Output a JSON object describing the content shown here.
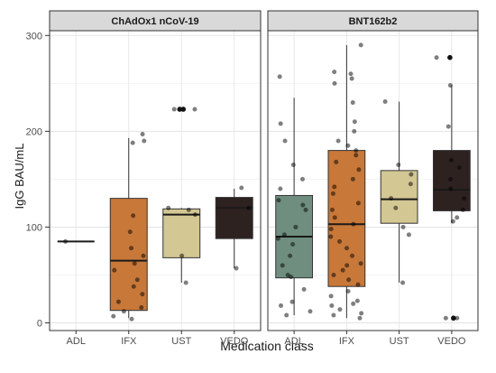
{
  "chart_data": {
    "type": "boxplot",
    "ylabel": "IgG BAU/mL",
    "xlabel": "Medication class",
    "categories": [
      "ADL",
      "IFX",
      "UST",
      "VEDO"
    ],
    "ylim": [
      -8,
      305
    ],
    "yticks": [
      0,
      100,
      200,
      300
    ],
    "grid": true,
    "colors": {
      "ADL": "#6f8e7f",
      "IFX": "#c87839",
      "UST": "#d3c793",
      "VEDO": "#2e2220"
    },
    "panels": [
      {
        "name": "ChAdOx1 nCoV-19",
        "boxes": [
          {
            "category": "ADL",
            "min": 85,
            "q1": 85,
            "median": 85,
            "q3": 85,
            "max": 85,
            "outliers": [],
            "points": [
              85
            ]
          },
          {
            "category": "IFX",
            "min": 5,
            "q1": 13,
            "median": 65,
            "q3": 130,
            "max": 193,
            "outliers": [],
            "points": [
              4,
              7,
              12,
              16,
              22,
              30,
              38,
              45,
              55,
              62,
              70,
              78,
              95,
              112,
              188,
              190,
              197
            ]
          },
          {
            "category": "UST",
            "min": 42,
            "q1": 68,
            "median": 113,
            "q3": 119,
            "max": 120,
            "outliers": [
              223,
              223
            ],
            "points": [
              42,
              70,
              113,
              118,
              120,
              223,
              223
            ]
          },
          {
            "category": "VEDO",
            "min": 57,
            "q1": 88,
            "median": 120,
            "q3": 131,
            "max": 140,
            "outliers": [],
            "points": [
              57,
              120,
              141
            ]
          }
        ]
      },
      {
        "name": "BNT162b2",
        "boxes": [
          {
            "category": "ADL",
            "min": 8,
            "q1": 47,
            "median": 90,
            "q3": 133,
            "max": 235,
            "outliers": [],
            "points": [
              8,
              12,
              18,
              22,
              35,
              48,
              50,
              60,
              70,
              82,
              88,
              92,
              100,
              118,
              123,
              128,
              140,
              150,
              165,
              190,
              208,
              257
            ]
          },
          {
            "category": "IFX",
            "min": 5,
            "q1": 38,
            "median": 103,
            "q3": 180,
            "max": 290,
            "outliers": [],
            "points": [
              5,
              8,
              10,
              14,
              18,
              20,
              23,
              28,
              33,
              40,
              45,
              50,
              55,
              60,
              62,
              70,
              78,
              85,
              90,
              98,
              103,
              110,
              118,
              125,
              135,
              142,
              150,
              160,
              168,
              175,
              180,
              185,
              190,
              200,
              210,
              230,
              250,
              255,
              260,
              262,
              290
            ]
          },
          {
            "category": "UST",
            "min": 42,
            "q1": 104,
            "median": 129,
            "q3": 159,
            "max": 231,
            "outliers": [],
            "points": [
              42,
              92,
              100,
              120,
              130,
              145,
              155,
              165,
              231
            ]
          },
          {
            "category": "VEDO",
            "min": 104,
            "q1": 117,
            "median": 139,
            "q3": 180,
            "max": 248,
            "outliers": [
              5,
              277
            ],
            "points": [
              5,
              5,
              106,
              110,
              118,
              130,
              140,
              150,
              162,
              170,
              205,
              248,
              277
            ]
          }
        ]
      }
    ]
  }
}
